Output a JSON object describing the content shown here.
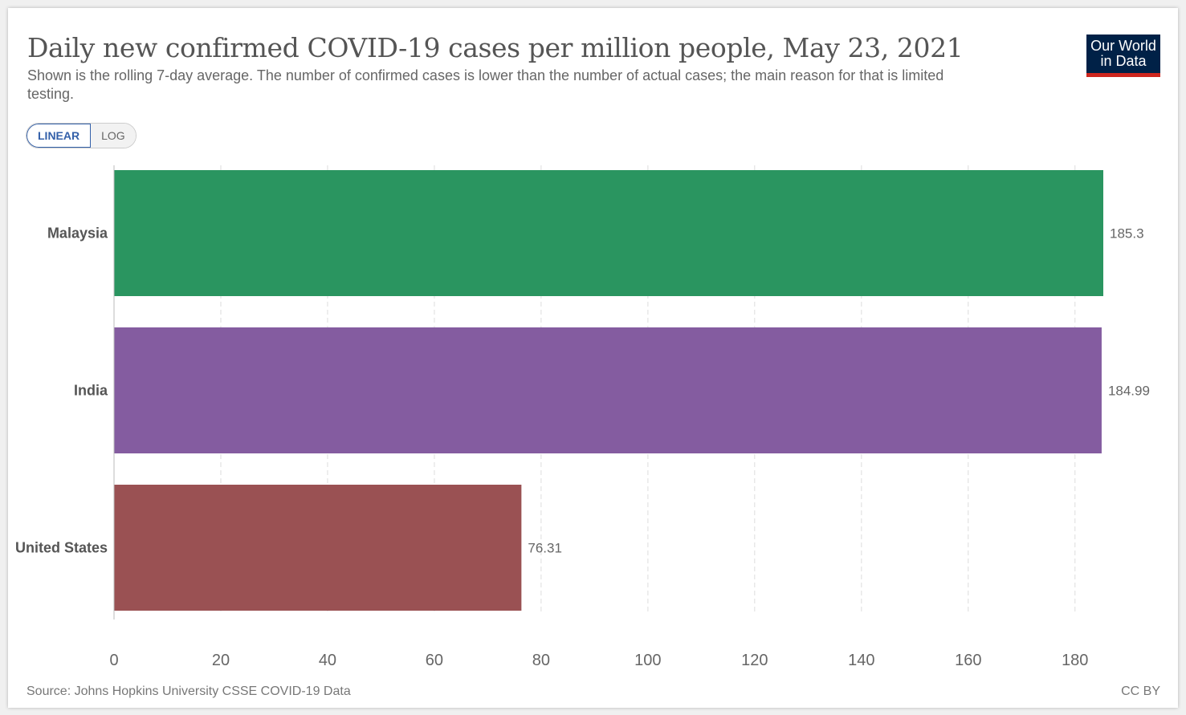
{
  "header": {
    "title": "Daily new confirmed COVID-19 cases per million people, May 23, 2021",
    "subtitle": "Shown is the rolling 7-day average. The number of confirmed cases is lower than the number of actual cases; the main reason for that is limited testing."
  },
  "logo": {
    "line1": "Our World",
    "line2": "in Data"
  },
  "scale_toggle": {
    "linear_label": "LINEAR",
    "log_label": "LOG",
    "selected": "LINEAR"
  },
  "chart_data": {
    "type": "bar",
    "orientation": "horizontal",
    "categories": [
      "Malaysia",
      "India",
      "United States"
    ],
    "values": [
      185.3,
      184.99,
      76.31
    ],
    "value_labels": [
      "185.3",
      "184.99",
      "76.31"
    ],
    "colors": [
      "#2a9560",
      "#845ca0",
      "#9a5153"
    ],
    "xlim": [
      0,
      185.3
    ],
    "xticks": [
      0,
      20,
      40,
      60,
      80,
      100,
      120,
      140,
      160,
      180
    ],
    "grid": true
  },
  "footer": {
    "source": "Source: Johns Hopkins University CSSE COVID-19 Data",
    "license": "CC BY"
  }
}
